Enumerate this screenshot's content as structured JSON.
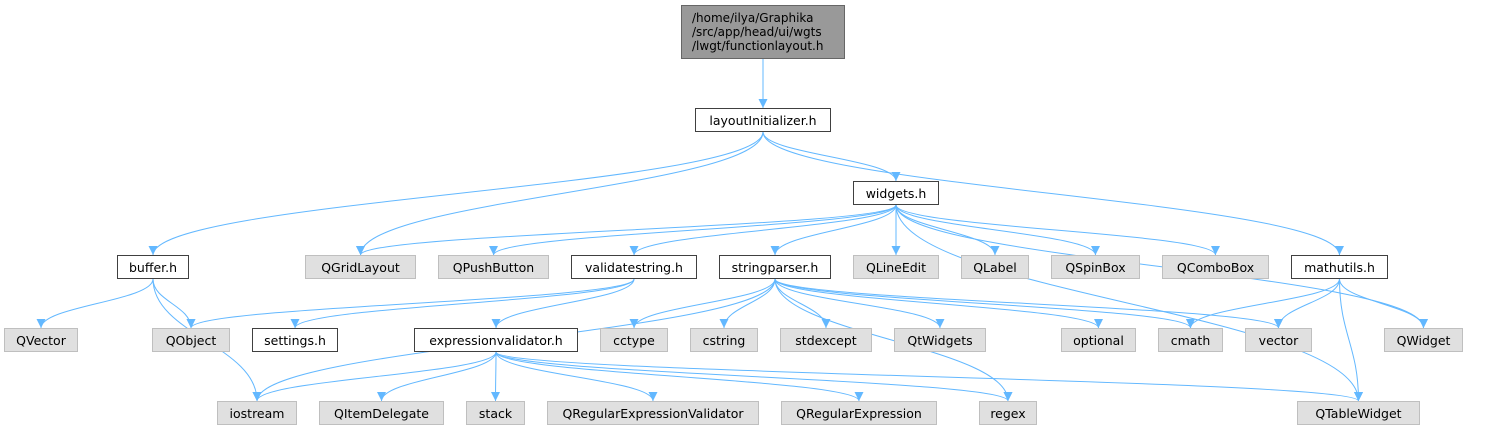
{
  "graph": {
    "nodes": {
      "root": "/home/ilya/Graphika\n/src/app/head/ui/wgts\n/lwgt/functionlayout.h",
      "layoutInitializer": "layoutInitializer.h",
      "widgets": "widgets.h",
      "buffer": "buffer.h",
      "QGridLayout": "QGridLayout",
      "QPushButton": "QPushButton",
      "validatestring": "validatestring.h",
      "stringparser": "stringparser.h",
      "QLineEdit": "QLineEdit",
      "QLabel": "QLabel",
      "QSpinBox": "QSpinBox",
      "QComboBox": "QComboBox",
      "mathutils": "mathutils.h",
      "QVector": "QVector",
      "QObject": "QObject",
      "settings": "settings.h",
      "expressionvalidator": "expressionvalidator.h",
      "cctype": "cctype",
      "cstring": "cstring",
      "stdexcept": "stdexcept",
      "QtWidgets": "QtWidgets",
      "optional": "optional",
      "cmath": "cmath",
      "vector": "vector",
      "QWidget": "QWidget",
      "iostream": "iostream",
      "QItemDelegate": "QItemDelegate",
      "stack": "stack",
      "QRegularExpressionValidator": "QRegularExpressionValidator",
      "QRegularExpression": "QRegularExpression",
      "regex": "regex",
      "QTableWidget": "QTableWidget"
    },
    "edges": [
      [
        "root",
        "layoutInitializer"
      ],
      [
        "layoutInitializer",
        "widgets"
      ],
      [
        "layoutInitializer",
        "buffer"
      ],
      [
        "layoutInitializer",
        "QGridLayout"
      ],
      [
        "layoutInitializer",
        "mathutils"
      ],
      [
        "widgets",
        "QGridLayout"
      ],
      [
        "widgets",
        "QPushButton"
      ],
      [
        "widgets",
        "validatestring"
      ],
      [
        "widgets",
        "stringparser"
      ],
      [
        "widgets",
        "QLineEdit"
      ],
      [
        "widgets",
        "QLabel"
      ],
      [
        "widgets",
        "QSpinBox"
      ],
      [
        "widgets",
        "QComboBox"
      ],
      [
        "widgets",
        "QWidget"
      ],
      [
        "widgets",
        "QTableWidget"
      ],
      [
        "buffer",
        "QVector"
      ],
      [
        "buffer",
        "QObject"
      ],
      [
        "buffer",
        "iostream"
      ],
      [
        "validatestring",
        "QObject"
      ],
      [
        "validatestring",
        "settings"
      ],
      [
        "validatestring",
        "expressionvalidator"
      ],
      [
        "stringparser",
        "iostream"
      ],
      [
        "stringparser",
        "cctype"
      ],
      [
        "stringparser",
        "cstring"
      ],
      [
        "stringparser",
        "stdexcept"
      ],
      [
        "stringparser",
        "QtWidgets"
      ],
      [
        "stringparser",
        "optional"
      ],
      [
        "stringparser",
        "cmath"
      ],
      [
        "stringparser",
        "vector"
      ],
      [
        "stringparser",
        "regex"
      ],
      [
        "mathutils",
        "cmath"
      ],
      [
        "mathutils",
        "vector"
      ],
      [
        "mathutils",
        "QWidget"
      ],
      [
        "mathutils",
        "QTableWidget"
      ],
      [
        "expressionvalidator",
        "iostream"
      ],
      [
        "expressionvalidator",
        "QItemDelegate"
      ],
      [
        "expressionvalidator",
        "stack"
      ],
      [
        "expressionvalidator",
        "QRegularExpressionValidator"
      ],
      [
        "expressionvalidator",
        "QRegularExpression"
      ],
      [
        "expressionvalidator",
        "regex"
      ],
      [
        "expressionvalidator",
        "QTableWidget"
      ]
    ]
  },
  "colors": {
    "edge": "#63b8ff",
    "root_fill": "#999999",
    "local_fill": "#ffffff",
    "system_fill": "#e0e0e0"
  }
}
